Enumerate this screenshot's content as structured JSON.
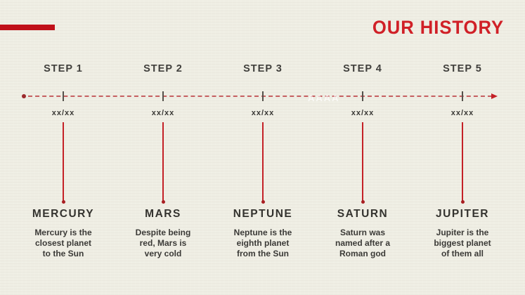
{
  "slide": {
    "title": "OUR HISTORY",
    "watermark": "AAAA"
  },
  "colors": {
    "background": "#efeee4",
    "accent_red": "#c42026",
    "bar_red": "#c01019",
    "title_red": "#d02027",
    "dash_red": "#c0484c",
    "tick_gray": "#55524c",
    "text_dark": "#3b3a37"
  },
  "steps": [
    {
      "label": "STEP 1",
      "date": "xx/xx",
      "name": "MERCURY",
      "description": "Mercury is the\nclosest planet\nto the Sun"
    },
    {
      "label": "STEP 2",
      "date": "xx/xx",
      "name": "MARS",
      "description": "Despite being\nred, Mars is\nvery cold"
    },
    {
      "label": "STEP 3",
      "date": "xx/xx",
      "name": "NEPTUNE",
      "description": "Neptune is the\neighth planet\nfrom the Sun"
    },
    {
      "label": "STEP 4",
      "date": "xx/xx",
      "name": "SATURN",
      "description": "Saturn was\nnamed after a\nRoman god"
    },
    {
      "label": "STEP 5",
      "date": "xx/xx",
      "name": "JUPITER",
      "description": "Jupiter is the\nbiggest planet\nof them all"
    }
  ]
}
